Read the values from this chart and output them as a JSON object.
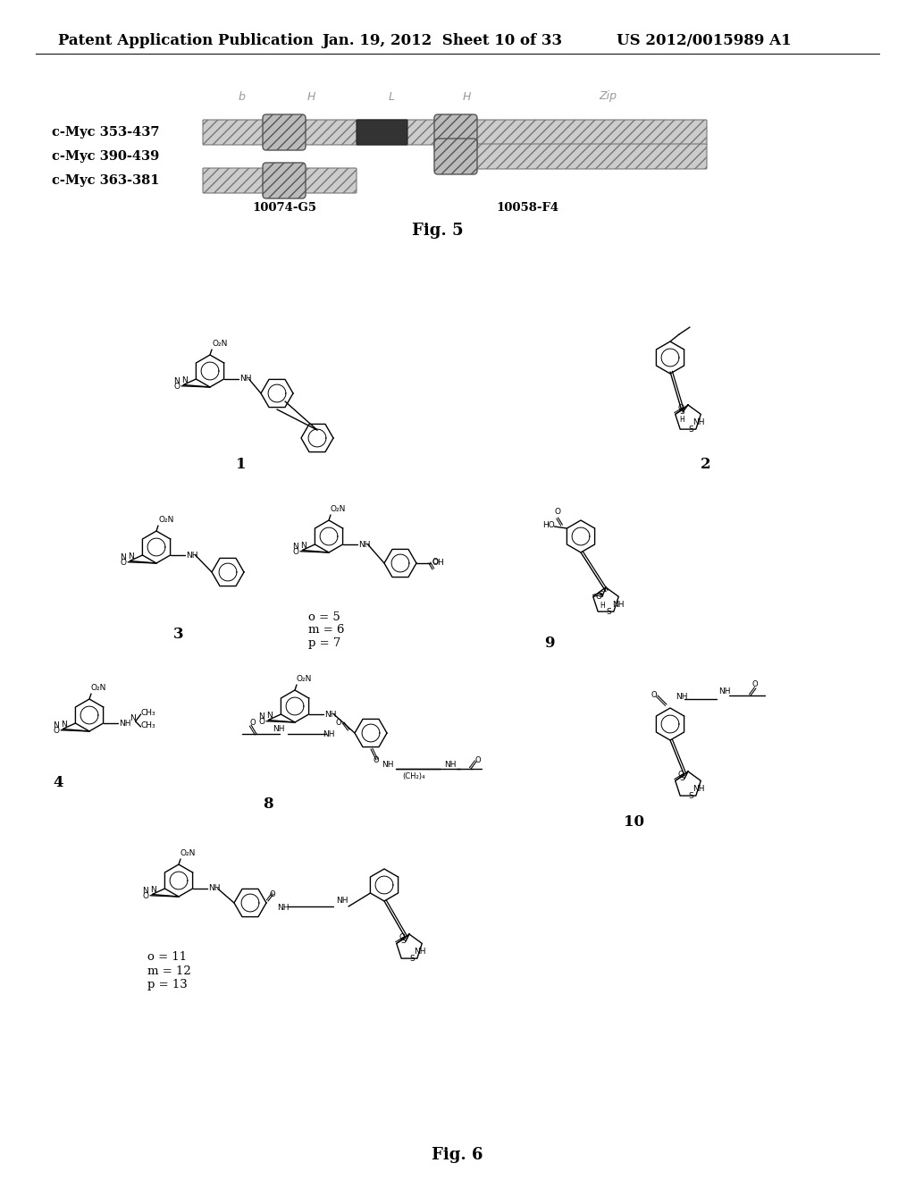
{
  "header_left": "Patent Application Publication",
  "header_mid": "Jan. 19, 2012  Sheet 10 of 33",
  "header_right": "US 2012/0015989 A1",
  "fig5_label": "Fig. 5",
  "fig6_label": "Fig. 6",
  "background_color": "#ffffff",
  "text_color": "#000000",
  "header_fontsize": 12,
  "row_labels": [
    "c-Myc 353-437",
    "c-Myc 390-439",
    "c-Myc 363-381"
  ],
  "domain_labels": [
    "b",
    "H",
    "L",
    "H",
    "Zip"
  ],
  "antibody_labels": [
    "10074-G5",
    "10058-F4"
  ]
}
